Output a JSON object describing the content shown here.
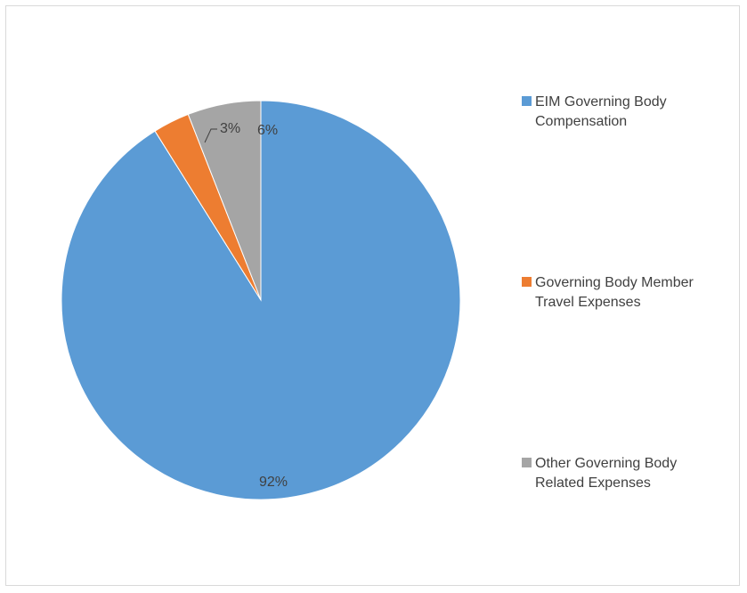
{
  "chart_data": {
    "type": "pie",
    "title": "",
    "series": [
      {
        "values": [
          92,
          3,
          6
        ],
        "labels": [
          "92%",
          "3%",
          "6%"
        ],
        "colors": [
          "#5b9bd5",
          "#ed7d31",
          "#a5a5a5"
        ]
      }
    ],
    "categories": [
      "EIM Governing Body Compensation",
      "Governing Body Member Travel Expenses",
      "Other Governing Body Related Expenses"
    ],
    "legend_position": "right",
    "start_angle_deg": 0,
    "direction": "clockwise"
  },
  "legend": {
    "items": [
      {
        "line1": "EIM Governing Body",
        "line2": "Compensation",
        "color": "#5b9bd5"
      },
      {
        "line1": "Governing Body Member",
        "line2": "Travel Expenses",
        "color": "#ed7d31"
      },
      {
        "line1": "Other Governing Body",
        "line2": "Related Expenses",
        "color": "#a5a5a5"
      }
    ]
  }
}
